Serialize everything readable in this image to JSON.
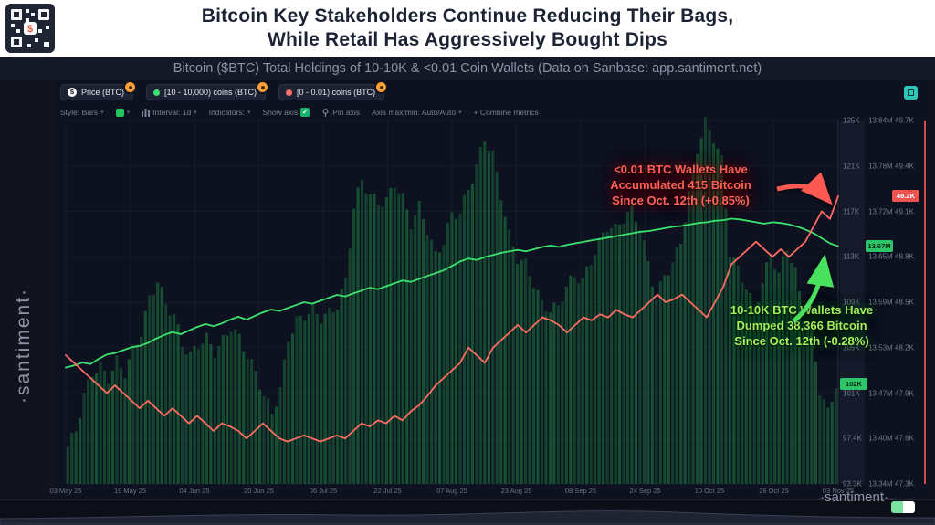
{
  "header": {
    "title_line1": "Bitcoin Key Stakeholders Continue Reducing Their Bags,",
    "title_line2": "While Retail Has Aggressively Bought Dips"
  },
  "subtitle": "Bitcoin ($BTC) Total Holdings of 10-10K & <0.01 Coin Wallets (Data on Sanbase: app.santiment.net)",
  "watermark_vertical": "·santiment·",
  "watermark_bottom": "·santiment·",
  "legend": [
    {
      "label": "Price (BTC)",
      "icon": "coin-dollar",
      "color": "#ffffff"
    },
    {
      "label": "[10 - 10,000) coins (BTC)",
      "color": "#3ce26e"
    },
    {
      "label": "[0 - 0.01) coins (BTC)",
      "color": "#ff6d62"
    }
  ],
  "toolbar": {
    "style_label": "Style: Bars",
    "interval_label": "Interval: 1d",
    "indicators_label": "Indicators:",
    "show_axis_label": "Show axis",
    "pin_axis_label": "Pin axis",
    "axis_maxmin_label": "Axis max/min: Auto/Auto",
    "combine_label": "+ Combine metrics",
    "checkbox_glyph": "✓"
  },
  "annotations": {
    "red": {
      "color": "#ff5a52",
      "lines": [
        "<0.01 BTC Wallets Have",
        "Accumulated 415 Bitcoin",
        "Since Oct. 12th (+0.85%)"
      ]
    },
    "green": {
      "color": "#49e05e",
      "lines": [
        "10-10K BTC Wallets Have",
        "Dumped 38,366 Bitcoin",
        "Since Oct. 12th (-0.28%)"
      ]
    }
  },
  "chart_data": {
    "type": "bar",
    "title": "Bitcoin Key Stakeholders Continue Reducing Their Bags, While Retail Has Aggressively Bought Dips",
    "subtitle": "Bitcoin ($BTC) Total Holdings of 10-10K & <0.01 Coin Wallets",
    "xlabel": "",
    "ylabel": "",
    "grid": true,
    "legend_position": "top-left",
    "x_range": [
      "03 May 25",
      "03 Nov 25"
    ],
    "x_tick_labels": [
      "03 May 25",
      "19 May 25",
      "04 Jun 25",
      "20 Jun 25",
      "06 Jul 25",
      "22 Jul 25",
      "07 Aug 25",
      "23 Aug 25",
      "08 Sep 25",
      "24 Sep 25",
      "10 Oct 25",
      "26 Oct 25",
      "03 Nov 25"
    ],
    "series": [
      {
        "name": "Price (BTC)",
        "type": "bar",
        "axis": "price",
        "color": "#1d7c3f",
        "unit": "K USD",
        "values": [
          96.5,
          98,
          101,
          103,
          103.5,
          102.5,
          104,
          103,
          105,
          106.5,
          109.5,
          111,
          109,
          108,
          105.5,
          104.5,
          105.5,
          106,
          104.8,
          105.8,
          107,
          106,
          104.5,
          103,
          101,
          99.5,
          101.5,
          106,
          107.5,
          108,
          108.5,
          107.8,
          108.2,
          108.9,
          111,
          117.5,
          119.8,
          118.5,
          117.8,
          118,
          119.5,
          118.2,
          116,
          117.5,
          115.5,
          113.2,
          114.5,
          116.8,
          117,
          119,
          121,
          123.5,
          122,
          118.5,
          115,
          113,
          112.5,
          110.8,
          109,
          108.5,
          108.8,
          110.5,
          111.5,
          111,
          112.8,
          114.3,
          115.8,
          115.5,
          116.5,
          117.2,
          115.8,
          112.5,
          109.5,
          111.5,
          112.5,
          114.5,
          118.5,
          122.5,
          124.8,
          123.5,
          121.5,
          113.5,
          112,
          110.5,
          108.5,
          110.8,
          113.5,
          111.5,
          114,
          111.8,
          108,
          106.5,
          101.5,
          99.5,
          102
        ]
      },
      {
        "name": "[10 - 10,000) coins (BTC)",
        "type": "line",
        "axis": "holdings_10_10k",
        "color": "#3ce26e",
        "unit": "M BTC",
        "values": [
          13.5,
          13.503,
          13.507,
          13.505,
          13.512,
          13.518,
          13.52,
          13.524,
          13.528,
          13.53,
          13.534,
          13.54,
          13.545,
          13.549,
          13.546,
          13.551,
          13.556,
          13.56,
          13.557,
          13.561,
          13.566,
          13.57,
          13.566,
          13.571,
          13.576,
          13.58,
          13.578,
          13.582,
          13.586,
          13.59,
          13.588,
          13.592,
          13.596,
          13.6,
          13.598,
          13.602,
          13.606,
          13.61,
          13.608,
          13.612,
          13.616,
          13.62,
          13.618,
          13.622,
          13.626,
          13.63,
          13.634,
          13.64,
          13.646,
          13.65,
          13.648,
          13.652,
          13.655,
          13.658,
          13.66,
          13.662,
          13.66,
          13.663,
          13.666,
          13.668,
          13.666,
          13.669,
          13.671,
          13.673,
          13.675,
          13.677,
          13.679,
          13.681,
          13.683,
          13.685,
          13.687,
          13.688,
          13.69,
          13.692,
          13.694,
          13.695,
          13.697,
          13.699,
          13.7,
          13.702,
          13.703,
          13.705,
          13.704,
          13.702,
          13.7,
          13.698,
          13.7,
          13.699,
          13.697,
          13.694,
          13.69,
          13.685,
          13.678,
          13.671,
          13.667
        ]
      },
      {
        "name": "[0 - 0.01) coins (BTC)",
        "type": "line",
        "axis": "holdings_lt_001",
        "color": "#ff6d62",
        "unit": "K BTC",
        "values": [
          48.15,
          48.1,
          48.05,
          48.0,
          47.95,
          47.9,
          47.95,
          47.9,
          47.85,
          47.8,
          47.85,
          47.8,
          47.75,
          47.8,
          47.75,
          47.7,
          47.75,
          47.7,
          47.65,
          47.7,
          47.68,
          47.65,
          47.6,
          47.65,
          47.7,
          47.65,
          47.6,
          47.58,
          47.6,
          47.62,
          47.6,
          47.58,
          47.6,
          47.62,
          47.6,
          47.65,
          47.7,
          47.68,
          47.72,
          47.7,
          47.75,
          47.72,
          47.78,
          47.82,
          47.88,
          47.95,
          48.0,
          48.05,
          48.1,
          48.2,
          48.15,
          48.1,
          48.2,
          48.25,
          48.3,
          48.35,
          48.3,
          48.35,
          48.4,
          48.38,
          48.35,
          48.3,
          48.35,
          48.4,
          48.38,
          48.42,
          48.4,
          48.45,
          48.42,
          48.4,
          48.45,
          48.5,
          48.55,
          48.5,
          48.52,
          48.55,
          48.5,
          48.45,
          48.4,
          48.5,
          48.6,
          48.75,
          48.8,
          48.85,
          48.9,
          48.85,
          48.8,
          48.85,
          48.8,
          48.85,
          48.9,
          49.0,
          49.1,
          49.05,
          49.2
        ]
      }
    ],
    "axes": {
      "price": {
        "min": 93.3,
        "max": 125,
        "ticks": [
          "125K",
          "121K",
          "117K",
          "113K",
          "109K",
          "105K",
          "101K",
          "97.4K",
          "93.3K"
        ],
        "last": 102,
        "last_label": "102K",
        "badge_color": "#2ec56a"
      },
      "holdings_10_10k": {
        "min": 13.34,
        "max": 13.84,
        "ticks": [
          "13.84M",
          "13.78M",
          "13.72M",
          "13.65M",
          "13.59M",
          "13.53M",
          "13.47M",
          "13.40M",
          "13.34M"
        ],
        "last": 13.667,
        "last_label": "13.67M",
        "badge_color": "#2ec56a"
      },
      "holdings_lt_001": {
        "min": 47.3,
        "max": 49.7,
        "ticks": [
          "49.7K",
          "49.4K",
          "49.1K",
          "48.8K",
          "48.5K",
          "48.2K",
          "47.9K",
          "47.6K",
          "47.3K"
        ],
        "last": 49.2,
        "last_label": "49.2K",
        "badge_color": "#ef5350"
      }
    }
  }
}
